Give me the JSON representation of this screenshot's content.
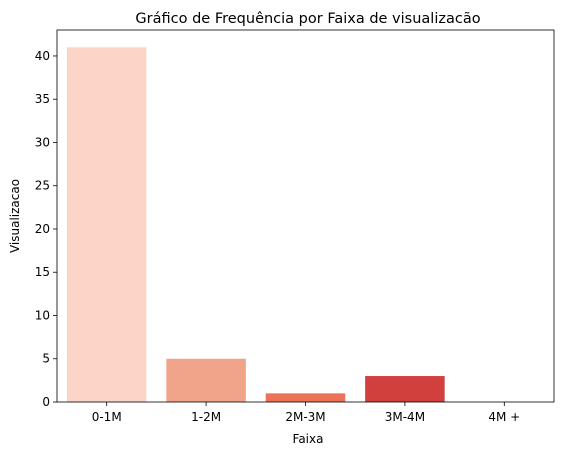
{
  "chart_data": {
    "type": "bar",
    "title": "Gráfico de Frequência por Faixa de visualizacão",
    "xlabel": "Faixa",
    "ylabel": "Visualizacao",
    "categories": [
      "0-1M",
      "1-2M",
      "2M-3M",
      "3M-4M",
      "4M +"
    ],
    "values": [
      41,
      5,
      1,
      3,
      0
    ],
    "ylim": [
      0,
      43
    ],
    "yticks": [
      0,
      5,
      10,
      15,
      20,
      25,
      30,
      35,
      40
    ],
    "grid": false,
    "colors": [
      "#fcd5c8",
      "#f0a58b",
      "#ec7258",
      "#d1403d",
      "#a50f15"
    ]
  }
}
